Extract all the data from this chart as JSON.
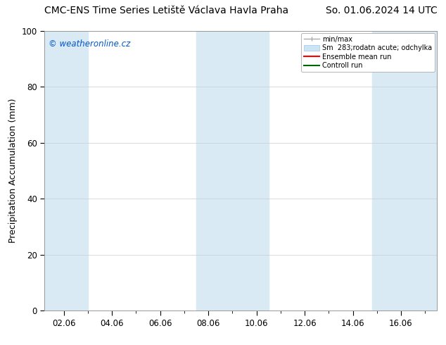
{
  "title_left": "CMC-ENS Time Series Letiště Václava Havla Praha",
  "title_right": "So. 01.06.2024 14 UTC",
  "ylabel": "Precipitation Accumulation (mm)",
  "ylim": [
    0,
    100
  ],
  "yticks": [
    0,
    20,
    40,
    60,
    80,
    100
  ],
  "xlim_start": 1.2,
  "xlim_end": 17.5,
  "xtick_labels": [
    "02.06",
    "04.06",
    "06.06",
    "08.06",
    "10.06",
    "12.06",
    "14.06",
    "16.06"
  ],
  "xtick_positions": [
    2,
    4,
    6,
    8,
    10,
    12,
    14,
    16
  ],
  "watermark": "© weatheronline.cz",
  "legend_entries": [
    {
      "label": "min/max",
      "color": "#aaaaaa",
      "type": "errorbar"
    },
    {
      "label": "Sm  283;rodatn acute; odchylka",
      "color": "#cce0f0",
      "type": "fill"
    },
    {
      "label": "Ensemble mean run",
      "color": "#ff0000",
      "type": "line"
    },
    {
      "label": "Controll run",
      "color": "#006600",
      "type": "line"
    }
  ],
  "shaded_regions": [
    {
      "x_start": 1.2,
      "x_end": 3.0,
      "color": "#daeaf5"
    },
    {
      "x_start": 7.5,
      "x_end": 10.5,
      "color": "#daeaf5"
    },
    {
      "x_start": 14.8,
      "x_end": 17.5,
      "color": "#daeaf5"
    }
  ],
  "background_color": "#ffffff",
  "plot_bg_color": "#ffffff",
  "grid_color": "#cccccc",
  "title_fontsize": 10,
  "axis_fontsize": 9,
  "tick_fontsize": 8.5,
  "watermark_color": "#0055cc",
  "minor_xtick_positions": [
    3,
    5,
    7,
    9,
    11,
    13,
    15,
    17
  ]
}
